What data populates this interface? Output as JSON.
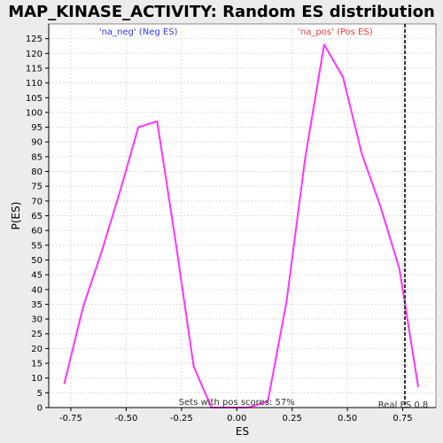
{
  "chart_data": {
    "type": "line",
    "title": "MAP_KINASE_ACTIVITY: Random ES distribution",
    "xlabel": "ES",
    "ylabel": "P(ES)",
    "xlim": [
      -0.85,
      0.9
    ],
    "ylim": [
      0,
      130
    ],
    "grid": true,
    "x_ticks": [
      -0.75,
      -0.5,
      -0.25,
      0.0,
      0.25,
      0.5,
      0.75
    ],
    "x_tick_labels": [
      "-0.75",
      "-0.50",
      "-0.25",
      "0.00",
      "0.25",
      "0.50",
      "0.75"
    ],
    "y_ticks": [
      0,
      5,
      10,
      15,
      20,
      25,
      30,
      35,
      40,
      45,
      50,
      55,
      60,
      65,
      70,
      75,
      80,
      85,
      90,
      95,
      100,
      105,
      110,
      115,
      120,
      125
    ],
    "series": [
      {
        "color": "#ff33ff",
        "x": [
          -0.78,
          -0.695,
          -0.61,
          -0.525,
          -0.445,
          -0.36,
          -0.28,
          -0.195,
          -0.115,
          -0.03,
          0.05,
          0.14,
          0.225,
          0.31,
          0.395,
          0.48,
          0.565,
          0.65,
          0.735,
          0.82
        ],
        "y": [
          8,
          34,
          53,
          74,
          95,
          97,
          58,
          14,
          0,
          0,
          0,
          2,
          36,
          85,
          123,
          112,
          86,
          68,
          47,
          7
        ]
      }
    ],
    "annotations": {
      "neg_label": "'na_neg' (Neg ES)",
      "pos_label": "'na_pos' (Pos ES)",
      "pos_scores": "Sets with pos scores: 57%",
      "real_es": "Real ES 0.8"
    },
    "real_es_value": 0.76,
    "colors": {
      "line": "#ff33ff",
      "neg_label": "#3333ff",
      "pos_label": "#ff3333",
      "real_es_line": "#333333",
      "background": "#ececec",
      "plot_background": "#ffffff",
      "grid": "#dddddd"
    }
  }
}
